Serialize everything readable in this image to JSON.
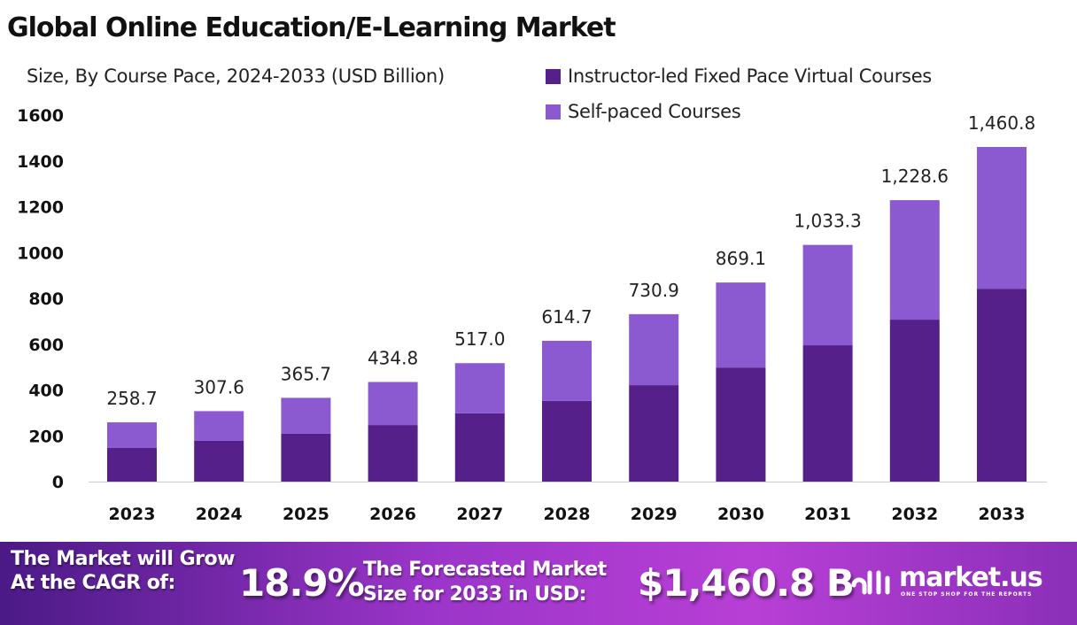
{
  "chart_data": {
    "type": "bar",
    "stacked": true,
    "title": "Global Online Education/E-Learning Market",
    "subtitle": "Size, By Course Pace, 2024-2033 (USD Billion)",
    "categories": [
      "2023",
      "2024",
      "2025",
      "2026",
      "2027",
      "2028",
      "2029",
      "2030",
      "2031",
      "2032",
      "2033"
    ],
    "series": [
      {
        "name": "Instructor-led Fixed Pace Virtual Courses",
        "color": "#55208a",
        "values": [
          147,
          178,
          209,
          247,
          298,
          352,
          421,
          498,
          595,
          707,
          842
        ]
      },
      {
        "name": "Self-paced Courses",
        "color": "#8c5ad0",
        "values": [
          111.7,
          129.6,
          156.7,
          187.8,
          219.0,
          262.7,
          309.9,
          371.1,
          438.3,
          521.6,
          618.8
        ]
      }
    ],
    "totals": [
      "258.7",
      "307.6",
      "365.7",
      "434.8",
      "517.0",
      "614.7",
      "730.9",
      "869.1",
      "1,033.3",
      "1,228.6",
      "1,460.8"
    ],
    "ylim": [
      0,
      1600
    ],
    "yticks": [
      "0",
      "200",
      "400",
      "600",
      "800",
      "1000",
      "1200",
      "1400",
      "1600"
    ],
    "grid": false,
    "legend": "top-right"
  },
  "footer": {
    "cagr_label_1": "The Market will Grow",
    "cagr_label_2": "At the CAGR of:",
    "cagr_value": "18.9%",
    "forecast_label_1": "The Forecasted Market",
    "forecast_label_2": "Size for 2033 in USD:",
    "forecast_value": "$1,460.8 B",
    "logo_text": "market.us",
    "logo_tagline": "ONE STOP SHOP FOR THE REPORTS",
    "gradient_colors": [
      "#4b1a86",
      "#b83fd6"
    ]
  }
}
